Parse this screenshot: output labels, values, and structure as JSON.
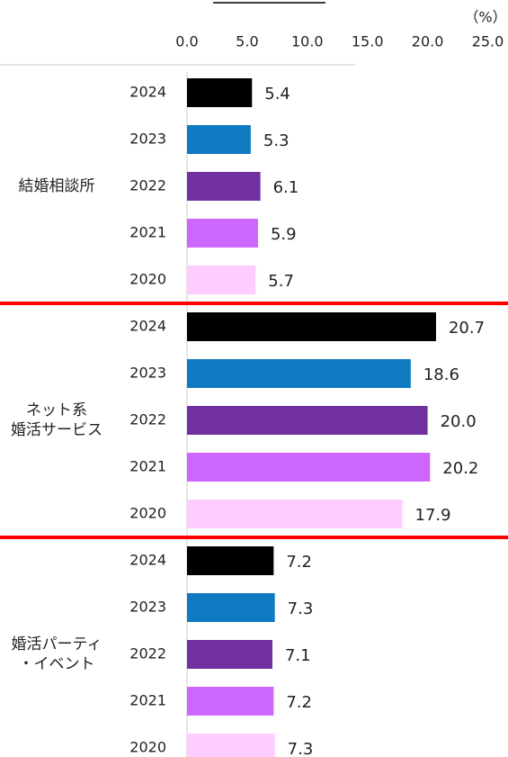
{
  "chart_data": {
    "type": "bar",
    "orientation": "horizontal",
    "unit_label": "（%）",
    "categories": [
      [
        "結婚相談所"
      ],
      [
        "ネット系",
        "婚活サービス"
      ],
      [
        "婚活パーティ",
        "・イベント"
      ]
    ],
    "series": [
      {
        "name": "2024",
        "color": "#000000",
        "values": [
          5.4,
          20.7,
          7.2
        ],
        "value_labels": [
          "5.4",
          "20.7",
          "7.2"
        ]
      },
      {
        "name": "2023",
        "color": "#0f7ac1",
        "values": [
          5.3,
          18.6,
          7.3
        ],
        "value_labels": [
          "5.3",
          "18.6",
          "7.3"
        ]
      },
      {
        "name": "2022",
        "color": "#7030a0",
        "values": [
          6.1,
          20.0,
          7.1
        ],
        "value_labels": [
          "6.1",
          "20.0",
          "7.1"
        ]
      },
      {
        "name": "2021",
        "color": "#cc66ff",
        "values": [
          5.9,
          20.2,
          7.2
        ],
        "value_labels": [
          "5.9",
          "20.2",
          "7.2"
        ]
      },
      {
        "name": "2020",
        "color": "#ffccff",
        "values": [
          5.7,
          17.9,
          7.3
        ],
        "value_labels": [
          "5.7",
          "17.9",
          "7.3"
        ]
      }
    ],
    "xlim": [
      0,
      25
    ],
    "xticks": [
      {
        "value": 0,
        "label": "0.0"
      },
      {
        "value": 5,
        "label": "5.0"
      },
      {
        "value": 10,
        "label": "10.0"
      },
      {
        "value": 15,
        "label": "15.0"
      },
      {
        "value": 20,
        "label": "20.0"
      },
      {
        "value": 25,
        "label": "25.0"
      }
    ],
    "separator_color": "#ff0000"
  }
}
